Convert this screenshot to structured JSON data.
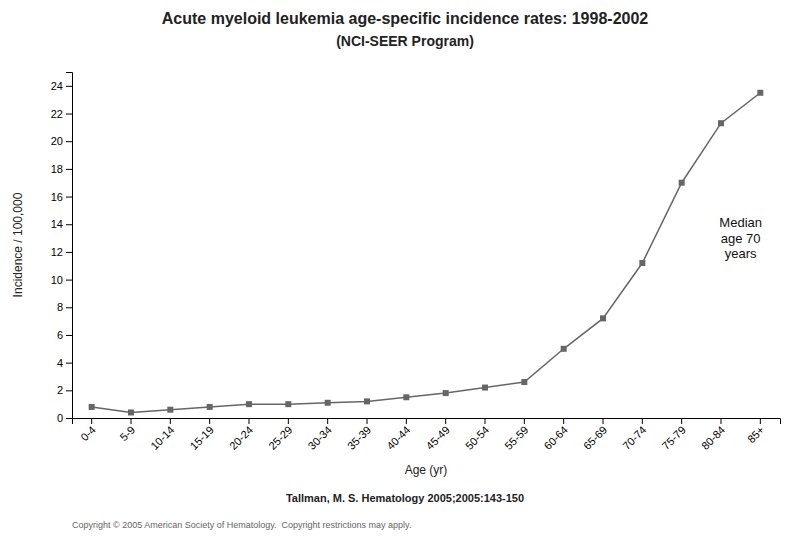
{
  "chart_data": {
    "type": "line",
    "title": "Acute myeloid leukemia age-specific incidence rates: 1998-2002",
    "subtitle": "(NCI-SEER Program)",
    "x_label": "Age (yr)",
    "y_label": "Incidence / 100,000",
    "categories": [
      "0-4",
      "5-9",
      "10-14",
      "15-19",
      "20-24",
      "25-29",
      "30-34",
      "35-39",
      "40-44",
      "45-49",
      "50-54",
      "55-59",
      "60-64",
      "65-69",
      "70-74",
      "75-79",
      "80-84",
      "85+"
    ],
    "values": [
      0.8,
      0.4,
      0.6,
      0.8,
      1.0,
      1.0,
      1.1,
      1.2,
      1.5,
      1.8,
      2.2,
      2.6,
      5.0,
      7.2,
      11.2,
      17.0,
      21.3,
      23.5
    ],
    "color": "#666666",
    "marker": "square",
    "ylim": [
      0,
      25
    ],
    "yticks": [
      0,
      2,
      4,
      6,
      8,
      10,
      12,
      14,
      16,
      18,
      20,
      22,
      24
    ],
    "grid": false,
    "annotation": "Median\nage 70\nyears",
    "citation": "Tallman, M. S. Hematology 2005;2005:143-150",
    "copyright": "Copyright © 2005 American Society of Hematology.  Copyright restrictions may apply."
  }
}
